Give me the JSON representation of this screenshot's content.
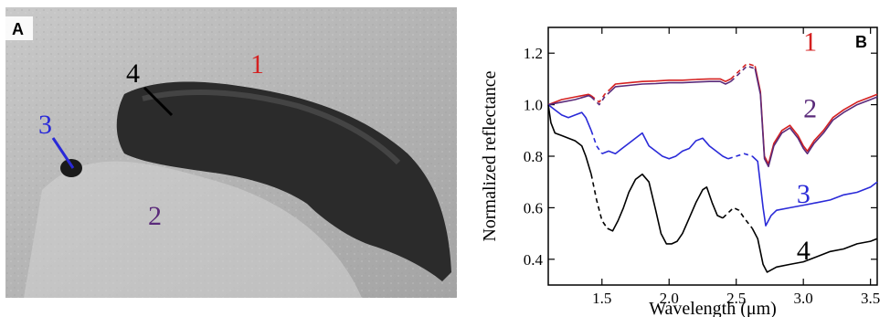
{
  "panel_a": {
    "label": "A",
    "markers": [
      {
        "id": "1",
        "color": "#d42020"
      },
      {
        "id": "2",
        "color": "#5a2a7a"
      },
      {
        "id": "3",
        "color": "#2a2ad8"
      },
      {
        "id": "4",
        "color": "#000000"
      }
    ]
  },
  "chart_data": {
    "type": "line",
    "panel_label": "B",
    "xlabel": "Wavelength (μm)",
    "ylabel": "Normalized reflectance",
    "xlim": [
      1.1,
      3.55
    ],
    "ylim": [
      0.3,
      1.3
    ],
    "x_ticks": [
      1.5,
      2.0,
      2.5,
      3.0,
      3.5
    ],
    "x_tick_labels": [
      "1.5",
      "2.0",
      "2.5",
      "3.0",
      "3.5"
    ],
    "y_ticks": [
      0.4,
      0.6,
      0.8,
      1.0,
      1.2
    ],
    "y_tick_labels": [
      "0.4",
      "0.6",
      "0.8",
      "1.0",
      "1.2"
    ],
    "grid": false,
    "series": [
      {
        "name": "1",
        "color": "#d42020",
        "label_color": "#d42020",
        "segments": [
          {
            "style": "solid",
            "points": [
              [
                1.1,
                1.0
              ],
              [
                1.2,
                1.02
              ],
              [
                1.3,
                1.03
              ],
              [
                1.4,
                1.04
              ],
              [
                1.42,
                1.035
              ]
            ]
          },
          {
            "style": "dashed",
            "points": [
              [
                1.42,
                1.035
              ],
              [
                1.48,
                1.01
              ],
              [
                1.52,
                1.04
              ],
              [
                1.56,
                1.06
              ]
            ]
          },
          {
            "style": "solid",
            "points": [
              [
                1.56,
                1.06
              ],
              [
                1.6,
                1.08
              ],
              [
                1.7,
                1.085
              ],
              [
                1.8,
                1.09
              ],
              [
                1.9,
                1.092
              ],
              [
                2.0,
                1.095
              ],
              [
                2.1,
                1.095
              ],
              [
                2.2,
                1.098
              ],
              [
                2.3,
                1.1
              ],
              [
                2.38,
                1.1
              ],
              [
                2.42,
                1.09
              ],
              [
                2.46,
                1.1
              ]
            ]
          },
          {
            "style": "dashed",
            "points": [
              [
                2.46,
                1.1
              ],
              [
                2.52,
                1.13
              ],
              [
                2.58,
                1.16
              ],
              [
                2.64,
                1.15
              ]
            ]
          },
          {
            "style": "solid",
            "points": [
              [
                2.64,
                1.15
              ],
              [
                2.68,
                1.05
              ],
              [
                2.71,
                0.8
              ],
              [
                2.74,
                0.77
              ],
              [
                2.78,
                0.85
              ],
              [
                2.84,
                0.9
              ],
              [
                2.9,
                0.92
              ],
              [
                2.96,
                0.88
              ],
              [
                3.0,
                0.84
              ],
              [
                3.03,
                0.82
              ],
              [
                3.08,
                0.86
              ],
              [
                3.15,
                0.9
              ],
              [
                3.22,
                0.95
              ],
              [
                3.3,
                0.98
              ],
              [
                3.4,
                1.01
              ],
              [
                3.5,
                1.03
              ],
              [
                3.55,
                1.04
              ]
            ]
          }
        ]
      },
      {
        "name": "2",
        "color": "#5a2a7a",
        "label_color": "#5a2a7a",
        "segments": [
          {
            "style": "solid",
            "points": [
              [
                1.1,
                1.0
              ],
              [
                1.2,
                1.01
              ],
              [
                1.3,
                1.02
              ],
              [
                1.4,
                1.035
              ],
              [
                1.42,
                1.03
              ]
            ]
          },
          {
            "style": "dashed",
            "points": [
              [
                1.42,
                1.03
              ],
              [
                1.48,
                1.0
              ],
              [
                1.52,
                1.03
              ],
              [
                1.56,
                1.05
              ]
            ]
          },
          {
            "style": "solid",
            "points": [
              [
                1.56,
                1.05
              ],
              [
                1.6,
                1.07
              ],
              [
                1.7,
                1.075
              ],
              [
                1.8,
                1.08
              ],
              [
                1.9,
                1.082
              ],
              [
                2.0,
                1.085
              ],
              [
                2.1,
                1.085
              ],
              [
                2.2,
                1.088
              ],
              [
                2.3,
                1.09
              ],
              [
                2.38,
                1.09
              ],
              [
                2.42,
                1.08
              ],
              [
                2.46,
                1.09
              ]
            ]
          },
          {
            "style": "dashed",
            "points": [
              [
                2.46,
                1.09
              ],
              [
                2.52,
                1.12
              ],
              [
                2.58,
                1.15
              ],
              [
                2.64,
                1.14
              ]
            ]
          },
          {
            "style": "solid",
            "points": [
              [
                2.64,
                1.14
              ],
              [
                2.68,
                1.04
              ],
              [
                2.71,
                0.79
              ],
              [
                2.74,
                0.76
              ],
              [
                2.78,
                0.84
              ],
              [
                2.84,
                0.89
              ],
              [
                2.9,
                0.91
              ],
              [
                2.96,
                0.87
              ],
              [
                3.0,
                0.83
              ],
              [
                3.03,
                0.81
              ],
              [
                3.08,
                0.85
              ],
              [
                3.15,
                0.89
              ],
              [
                3.22,
                0.94
              ],
              [
                3.3,
                0.97
              ],
              [
                3.4,
                1.0
              ],
              [
                3.5,
                1.02
              ],
              [
                3.55,
                1.03
              ]
            ]
          }
        ]
      },
      {
        "name": "3",
        "color": "#2a2ad8",
        "label_color": "#2a2ad8",
        "segments": [
          {
            "style": "solid",
            "points": [
              [
                1.1,
                1.0
              ],
              [
                1.15,
                0.98
              ],
              [
                1.2,
                0.96
              ],
              [
                1.25,
                0.95
              ],
              [
                1.3,
                0.96
              ],
              [
                1.35,
                0.97
              ],
              [
                1.38,
                0.95
              ],
              [
                1.42,
                0.9
              ]
            ]
          },
          {
            "style": "dashed",
            "points": [
              [
                1.42,
                0.9
              ],
              [
                1.46,
                0.84
              ],
              [
                1.5,
                0.81
              ]
            ]
          },
          {
            "style": "solid",
            "points": [
              [
                1.5,
                0.81
              ],
              [
                1.55,
                0.82
              ],
              [
                1.6,
                0.81
              ],
              [
                1.65,
                0.83
              ],
              [
                1.7,
                0.85
              ],
              [
                1.75,
                0.87
              ],
              [
                1.8,
                0.89
              ],
              [
                1.85,
                0.84
              ],
              [
                1.9,
                0.82
              ],
              [
                1.95,
                0.8
              ],
              [
                2.0,
                0.79
              ],
              [
                2.05,
                0.8
              ],
              [
                2.1,
                0.82
              ],
              [
                2.15,
                0.83
              ],
              [
                2.2,
                0.86
              ],
              [
                2.25,
                0.87
              ],
              [
                2.3,
                0.84
              ],
              [
                2.35,
                0.82
              ],
              [
                2.4,
                0.8
              ],
              [
                2.44,
                0.79
              ]
            ]
          },
          {
            "style": "dashed",
            "points": [
              [
                2.44,
                0.79
              ],
              [
                2.5,
                0.8
              ],
              [
                2.56,
                0.81
              ],
              [
                2.62,
                0.8
              ]
            ]
          },
          {
            "style": "solid",
            "points": [
              [
                2.62,
                0.8
              ],
              [
                2.66,
                0.78
              ],
              [
                2.7,
                0.6
              ],
              [
                2.72,
                0.53
              ],
              [
                2.76,
                0.57
              ],
              [
                2.8,
                0.59
              ],
              [
                2.9,
                0.6
              ],
              [
                3.0,
                0.61
              ],
              [
                3.1,
                0.62
              ],
              [
                3.2,
                0.63
              ],
              [
                3.3,
                0.65
              ],
              [
                3.4,
                0.66
              ],
              [
                3.5,
                0.68
              ],
              [
                3.55,
                0.7
              ]
            ]
          }
        ]
      },
      {
        "name": "4",
        "color": "#000000",
        "label_color": "#000000",
        "segments": [
          {
            "style": "solid",
            "points": [
              [
                1.1,
                1.0
              ],
              [
                1.12,
                0.93
              ],
              [
                1.15,
                0.89
              ],
              [
                1.2,
                0.88
              ],
              [
                1.25,
                0.87
              ],
              [
                1.3,
                0.86
              ],
              [
                1.35,
                0.84
              ],
              [
                1.38,
                0.8
              ],
              [
                1.42,
                0.73
              ]
            ]
          },
          {
            "style": "dashed",
            "points": [
              [
                1.42,
                0.73
              ],
              [
                1.46,
                0.63
              ],
              [
                1.5,
                0.55
              ],
              [
                1.54,
                0.52
              ]
            ]
          },
          {
            "style": "solid",
            "points": [
              [
                1.54,
                0.52
              ],
              [
                1.58,
                0.51
              ],
              [
                1.62,
                0.55
              ],
              [
                1.66,
                0.6
              ],
              [
                1.7,
                0.66
              ],
              [
                1.75,
                0.71
              ],
              [
                1.8,
                0.73
              ],
              [
                1.85,
                0.7
              ],
              [
                1.9,
                0.59
              ],
              [
                1.94,
                0.5
              ],
              [
                1.98,
                0.46
              ],
              [
                2.02,
                0.46
              ],
              [
                2.06,
                0.47
              ],
              [
                2.1,
                0.5
              ],
              [
                2.15,
                0.56
              ],
              [
                2.2,
                0.62
              ],
              [
                2.25,
                0.67
              ],
              [
                2.28,
                0.68
              ],
              [
                2.32,
                0.62
              ],
              [
                2.36,
                0.57
              ],
              [
                2.4,
                0.56
              ]
            ]
          },
          {
            "style": "dashed",
            "points": [
              [
                2.4,
                0.56
              ],
              [
                2.44,
                0.58
              ],
              [
                2.48,
                0.6
              ],
              [
                2.52,
                0.59
              ],
              [
                2.56,
                0.56
              ],
              [
                2.62,
                0.52
              ]
            ]
          },
          {
            "style": "solid",
            "points": [
              [
                2.62,
                0.52
              ],
              [
                2.66,
                0.48
              ],
              [
                2.7,
                0.38
              ],
              [
                2.73,
                0.35
              ],
              [
                2.8,
                0.37
              ],
              [
                2.9,
                0.38
              ],
              [
                3.0,
                0.39
              ],
              [
                3.1,
                0.41
              ],
              [
                3.2,
                0.43
              ],
              [
                3.3,
                0.44
              ],
              [
                3.4,
                0.46
              ],
              [
                3.5,
                0.47
              ],
              [
                3.55,
                0.48
              ]
            ]
          }
        ]
      }
    ]
  }
}
